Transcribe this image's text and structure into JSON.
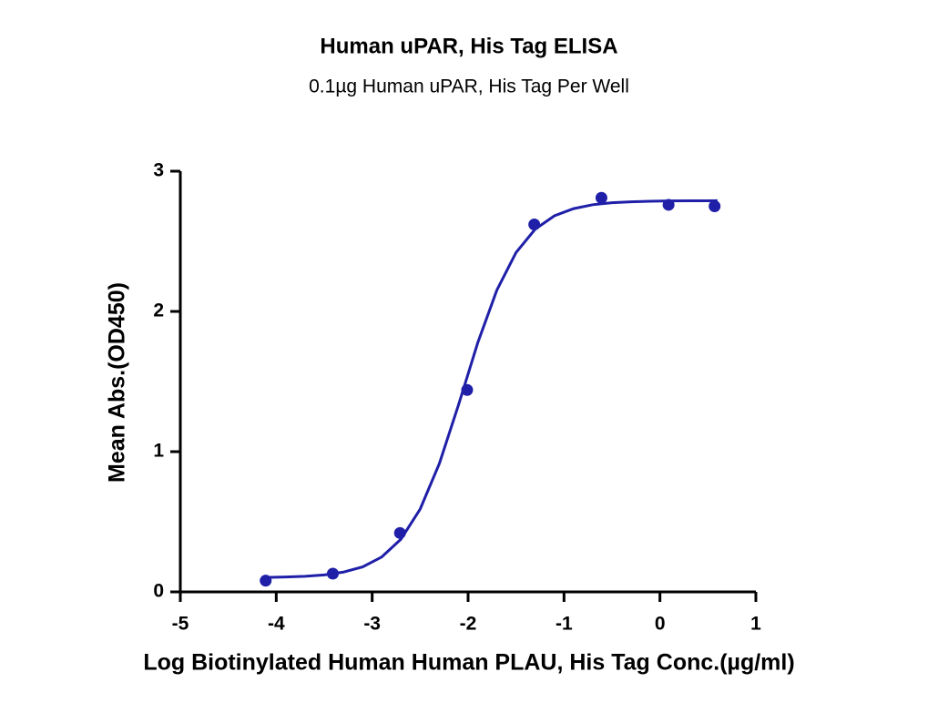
{
  "chart_data": {
    "type": "scatter",
    "title": "Human uPAR, His Tag ELISA",
    "subtitle": "0.1µg Human uPAR, His Tag Per Well",
    "x_label": "Log Biotinylated Human Human PLAU, His Tag Conc.(µg/ml)",
    "y_label": "Mean Abs.(OD450)",
    "color": "#1f1fa8",
    "xlim": [
      -5,
      1
    ],
    "xticks": [
      -5,
      -4,
      -3,
      -2,
      -1,
      0,
      1
    ],
    "ylim": [
      0,
      3
    ],
    "yticks": [
      0,
      1,
      2,
      3
    ],
    "points": {
      "x": [
        -4.11,
        -3.41,
        -2.71,
        -2.01,
        -1.31,
        -0.61,
        0.09,
        0.57
      ],
      "y": [
        0.08,
        0.13,
        0.42,
        1.44,
        2.62,
        2.81,
        2.76,
        2.75
      ]
    },
    "curve": {
      "x": [
        -4.1,
        -3.9,
        -3.7,
        -3.5,
        -3.3,
        -3.1,
        -2.9,
        -2.7,
        -2.5,
        -2.3,
        -2.1,
        -1.9,
        -1.7,
        -1.5,
        -1.3,
        -1.1,
        -0.9,
        -0.7,
        -0.5,
        -0.3,
        -0.1,
        0.1,
        0.3,
        0.5,
        0.6
      ],
      "y": [
        0.103,
        0.106,
        0.111,
        0.121,
        0.141,
        0.178,
        0.249,
        0.376,
        0.59,
        0.914,
        1.333,
        1.775,
        2.152,
        2.42,
        2.587,
        2.682,
        2.733,
        2.761,
        2.775,
        2.782,
        2.786,
        2.788,
        2.789,
        2.789,
        2.79
      ]
    }
  }
}
